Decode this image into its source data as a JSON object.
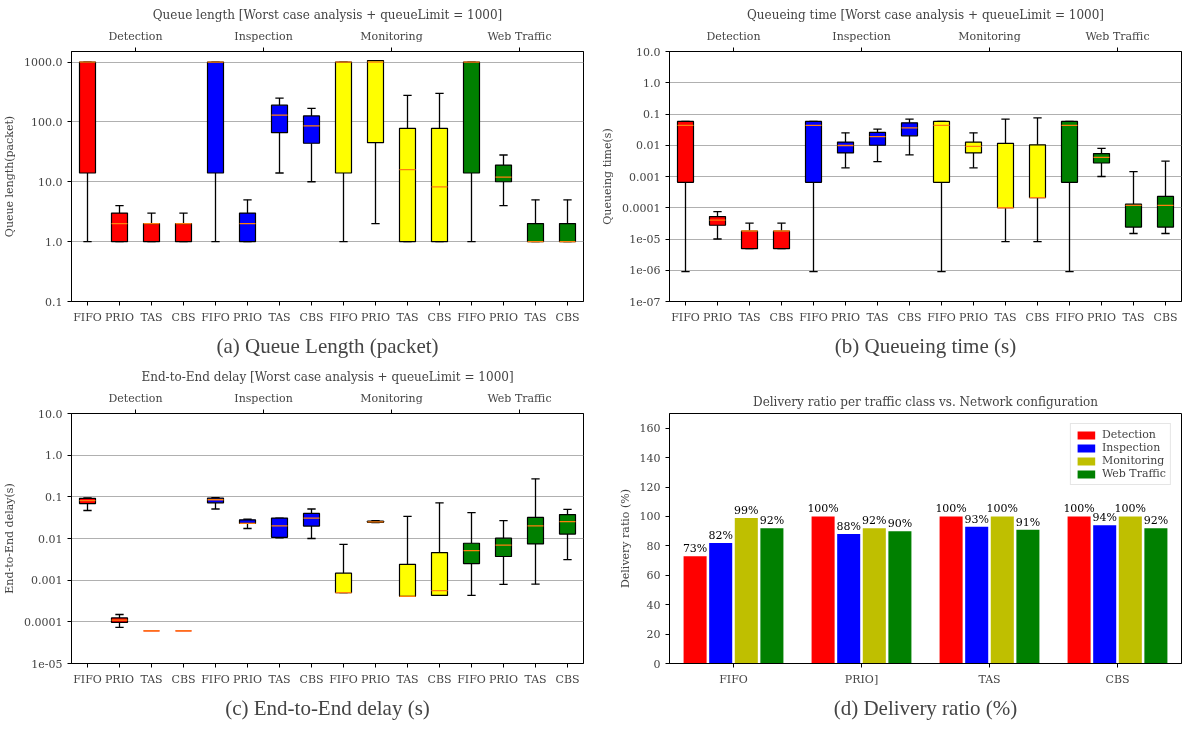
{
  "chart_data": [
    {
      "type": "box",
      "title": "Queue length [Worst case analysis + queueLimit = 1000]",
      "ylabel": "Queue length(packet)",
      "log": true,
      "grid": "y",
      "categories": [
        "FIFO",
        "PRIO",
        "TAS",
        "CBS",
        "FIFO",
        "PRIO",
        "TAS",
        "CBS",
        "FIFO",
        "PRIO",
        "TAS",
        "CBS",
        "FIFO",
        "PRIO",
        "TAS",
        "CBS"
      ],
      "ylim": [
        0.1,
        1500
      ],
      "yticks": [
        {
          "value": 0.1,
          "label": "0.1"
        },
        {
          "value": 1,
          "label": "1.0"
        },
        {
          "value": 10,
          "label": "10.0"
        },
        {
          "value": 100,
          "label": "100.0"
        },
        {
          "value": 1000,
          "label": "1000.0"
        }
      ],
      "series": [
        {
          "color": "#ff0000",
          "boxes": [
            {
              "low": 1,
              "q1": 14,
              "median": 1000,
              "q3": 1000,
              "high": 1000
            },
            {
              "low": 1,
              "q1": 1,
              "median": 2,
              "q3": 3,
              "high": 4
            },
            {
              "low": 1,
              "q1": 1,
              "median": 2,
              "q3": 2,
              "high": 3
            },
            {
              "low": 1,
              "q1": 1,
              "median": 2,
              "q3": 2,
              "high": 3
            },
            null,
            null,
            null,
            null,
            null,
            null,
            null,
            null,
            null,
            null,
            null,
            null
          ]
        },
        {
          "color": "#0000ff",
          "boxes": [
            null,
            null,
            null,
            null,
            {
              "low": 1,
              "q1": 14,
              "median": 1000,
              "q3": 1000,
              "high": 1000
            },
            {
              "low": 1,
              "q1": 1,
              "median": 2,
              "q3": 3,
              "high": 5
            },
            {
              "low": 14,
              "q1": 66,
              "median": 130,
              "q3": 190,
              "high": 250
            },
            {
              "low": 10,
              "q1": 44,
              "median": 86,
              "q3": 126,
              "high": 168
            },
            null,
            null,
            null,
            null,
            null,
            null,
            null,
            null
          ]
        },
        {
          "color": "#ffff00",
          "boxes": [
            null,
            null,
            null,
            null,
            null,
            null,
            null,
            null,
            {
              "low": 1,
              "q1": 14,
              "median": 1000,
              "q3": 1000,
              "high": 1000
            },
            {
              "low": 2,
              "q1": 45,
              "median": 1000,
              "q3": 1060,
              "high": 1060
            },
            {
              "low": 1,
              "q1": 1,
              "median": 16,
              "q3": 78,
              "high": 278
            },
            {
              "low": 1,
              "q1": 1,
              "median": 8.2,
              "q3": 78,
              "high": 300
            },
            null,
            null,
            null,
            null
          ]
        },
        {
          "color": "#008000",
          "boxes": [
            null,
            null,
            null,
            null,
            null,
            null,
            null,
            null,
            null,
            null,
            null,
            null,
            {
              "low": 1,
              "q1": 14,
              "median": 1000,
              "q3": 1000,
              "high": 1000
            },
            {
              "low": 4,
              "q1": 10,
              "median": 12,
              "q3": 19,
              "high": 28
            },
            {
              "low": 1,
              "q1": 1,
              "median": 1,
              "q3": 2,
              "high": 5
            },
            {
              "low": 1,
              "q1": 1,
              "median": 1,
              "q3": 2,
              "high": 5
            }
          ]
        }
      ],
      "annotations": [
        "Detection",
        "Inspection",
        "Monitoring",
        "Web Traffic",
        "(a) Queue Length (packet)"
      ]
    },
    {
      "type": "box",
      "title": "Queueing time [Worst case analysis + queueLimit = 1000]",
      "ylabel": "Queueing time(s)",
      "log": true,
      "grid": "y",
      "categories": [
        "FIFO",
        "PRIO",
        "TAS",
        "CBS",
        "FIFO",
        "PRIO",
        "TAS",
        "CBS",
        "FIFO",
        "PRIO",
        "TAS",
        "CBS",
        "FIFO",
        "PRIO",
        "TAS",
        "CBS"
      ],
      "ylim": [
        1e-07,
        10
      ],
      "yticks": [
        {
          "value": 1e-07,
          "label": "1e-07"
        },
        {
          "value": 1e-06,
          "label": "1e-06"
        },
        {
          "value": 1e-05,
          "label": "1e-05"
        },
        {
          "value": 0.0001,
          "label": "0.0001"
        },
        0.001,
        0.01,
        0.1,
        {
          "value": 1,
          "label": "1.0"
        },
        {
          "value": 10,
          "label": "10.0"
        }
      ],
      "series": [
        {
          "color": "#ff0000",
          "boxes": [
            {
              "low": 9e-07,
              "q1": 0.00065,
              "median": 0.043,
              "q3": 0.058,
              "high": 0.058
            },
            {
              "low": 1e-05,
              "q1": 2.75e-05,
              "median": 4e-05,
              "q3": 5.2e-05,
              "high": 7.5e-05
            },
            {
              "low": 4.9e-06,
              "q1": 4.9e-06,
              "median": 1.8e-05,
              "q3": 1.8e-05,
              "high": 3.2e-05
            },
            {
              "low": 4.9e-06,
              "q1": 4.9e-06,
              "median": 1.8e-05,
              "q3": 1.8e-05,
              "high": 3.2e-05
            },
            null,
            null,
            null,
            null,
            null,
            null,
            null,
            null,
            null,
            null,
            null,
            null
          ]
        },
        {
          "color": "#0000ff",
          "boxes": [
            null,
            null,
            null,
            null,
            {
              "low": 9e-07,
              "q1": 0.00065,
              "median": 0.043,
              "q3": 0.058,
              "high": 0.058
            },
            {
              "low": 0.0019,
              "q1": 0.0057,
              "median": 0.0098,
              "q3": 0.0126,
              "high": 0.025
            },
            {
              "low": 0.003,
              "q1": 0.01,
              "median": 0.019,
              "q3": 0.026,
              "high": 0.033
            },
            {
              "low": 0.0049,
              "q1": 0.02,
              "median": 0.036,
              "q3": 0.052,
              "high": 0.069
            },
            null,
            null,
            null,
            null,
            null,
            null,
            null,
            null
          ]
        },
        {
          "color": "#ffff00",
          "boxes": [
            null,
            null,
            null,
            null,
            null,
            null,
            null,
            null,
            {
              "low": 9e-07,
              "q1": 0.00065,
              "median": 0.043,
              "q3": 0.058,
              "high": 0.058
            },
            {
              "low": 0.0019,
              "q1": 0.0057,
              "median": 0.0092,
              "q3": 0.0126,
              "high": 0.025
            },
            {
              "low": 8.3e-06,
              "q1": 0.0001,
              "median": 0.0001,
              "q3": 0.0115,
              "high": 0.069
            },
            {
              "low": 8.3e-06,
              "q1": 0.00021,
              "median": 0.00021,
              "q3": 0.0103,
              "high": 0.075
            },
            null,
            null,
            null,
            null
          ]
        },
        {
          "color": "#008000",
          "boxes": [
            null,
            null,
            null,
            null,
            null,
            null,
            null,
            null,
            null,
            null,
            null,
            null,
            {
              "low": 9e-07,
              "q1": 0.00065,
              "median": 0.043,
              "q3": 0.058,
              "high": 0.058
            },
            {
              "low": 0.001,
              "q1": 0.0027,
              "median": 0.0041,
              "q3": 0.0054,
              "high": 0.0079
            },
            {
              "low": 1.5e-05,
              "q1": 2.4e-05,
              "median": 0.00012,
              "q3": 0.00013,
              "high": 0.00144
            },
            {
              "low": 1.5e-05,
              "q1": 2.4e-05,
              "median": 0.00012,
              "q3": 0.00023,
              "high": 0.0031
            }
          ]
        }
      ],
      "annotations": [
        "Detection",
        "Inspection",
        "Monitoring",
        "Web Traffic",
        "(b) Queueing time (s)"
      ]
    },
    {
      "type": "box",
      "title": "End-to-End delay [Worst case analysis + queueLimit = 1000]",
      "ylabel": "End-to-End delay(s)",
      "log": true,
      "grid": "y",
      "categories": [
        "FIFO",
        "PRIO",
        "TAS",
        "CBS",
        "FIFO",
        "PRIO",
        "TAS",
        "CBS",
        "FIFO",
        "PRIO",
        "TAS",
        "CBS",
        "FIFO",
        "PRIO",
        "TAS",
        "CBS"
      ],
      "ylim": [
        1e-05,
        10
      ],
      "yticks": [
        {
          "value": 1e-05,
          "label": "1e-05"
        },
        {
          "value": 0.0001,
          "label": "0.0001"
        },
        0.001,
        0.01,
        0.1,
        {
          "value": 1,
          "label": "1.0"
        },
        {
          "value": 10,
          "label": "10.0"
        }
      ],
      "series": [
        {
          "color": "#ff0000",
          "boxes": [
            {
              "low": 0.047,
              "q1": 0.069,
              "median": 0.081,
              "q3": 0.092,
              "high": 0.094
            },
            {
              "low": 7.4e-05,
              "q1": 9.7e-05,
              "median": 0.00011,
              "q3": 0.000124,
              "high": 0.00015
            },
            {
              "low": 6.1e-05,
              "q1": 6.1e-05,
              "median": 6.1e-05,
              "q3": 6.1e-05,
              "high": 6.1e-05
            },
            {
              "low": 6.1e-05,
              "q1": 6.1e-05,
              "median": 6.1e-05,
              "q3": 6.1e-05,
              "high": 6.1e-05
            },
            null,
            null,
            null,
            null,
            null,
            null,
            null,
            null,
            null,
            null,
            null,
            null
          ]
        },
        {
          "color": "#0000ff",
          "boxes": [
            null,
            null,
            null,
            null,
            {
              "low": 0.051,
              "q1": 0.072,
              "median": 0.085,
              "q3": 0.093,
              "high": 0.096
            },
            {
              "low": 0.0174,
              "q1": 0.023,
              "median": 0.023,
              "q3": 0.028,
              "high": 0.029
            },
            {
              "low": 0.0103,
              "q1": 0.0107,
              "median": 0.02,
              "q3": 0.031,
              "high": 0.031
            },
            {
              "low": 0.01,
              "q1": 0.0199,
              "median": 0.031,
              "q3": 0.04,
              "high": 0.051
            },
            null,
            null,
            null,
            null,
            null,
            null,
            null,
            null
          ]
        },
        {
          "color": "#ffff00",
          "boxes": [
            null,
            null,
            null,
            null,
            null,
            null,
            null,
            null,
            {
              "low": 0.0005,
              "q1": 0.0005,
              "median": 0.0005,
              "q3": 0.00147,
              "high": 0.0072
            },
            {
              "low": 0.024,
              "q1": 0.0245,
              "median": 0.025,
              "q3": 0.026,
              "high": 0.027
            },
            {
              "low": 0.00041,
              "q1": 0.00041,
              "median": 0.00041,
              "q3": 0.0024,
              "high": 0.034
            },
            {
              "low": 0.00043,
              "q1": 0.00043,
              "median": 0.00056,
              "q3": 0.0046,
              "high": 0.072
            },
            null,
            null,
            null,
            null
          ]
        },
        {
          "color": "#008000",
          "boxes": [
            null,
            null,
            null,
            null,
            null,
            null,
            null,
            null,
            null,
            null,
            null,
            null,
            {
              "low": 0.00043,
              "q1": 0.0025,
              "median": 0.0051,
              "q3": 0.0077,
              "high": 0.042
            },
            {
              "low": 0.00079,
              "q1": 0.0037,
              "median": 0.0069,
              "q3": 0.0102,
              "high": 0.027
            },
            {
              "low": 0.0008,
              "q1": 0.0074,
              "median": 0.02,
              "q3": 0.032,
              "high": 0.27
            },
            {
              "low": 0.0031,
              "q1": 0.0128,
              "median": 0.0253,
              "q3": 0.0375,
              "high": 0.05
            }
          ]
        }
      ],
      "annotations": [
        "Detection",
        "Inspection",
        "Monitoring",
        "Web Traffic",
        "(c) End-to-End delay (s)"
      ]
    },
    {
      "type": "bar",
      "title": "Delivery ratio per traffic class vs. Network configuration",
      "ylabel": "Delivery ratio (%)",
      "legend": "top right",
      "categories": [
        "FIFO",
        "PRIO]",
        "TAS",
        "CBS"
      ],
      "ylim": [
        0,
        170
      ],
      "yticks": [
        0,
        20,
        40,
        60,
        80,
        100,
        120,
        140,
        160
      ],
      "series": [
        {
          "name": "Detection",
          "color": "#ff0000",
          "values": [
            73,
            100,
            100,
            100
          ],
          "value_labels": [
            "73%",
            "100%",
            "100%",
            "100%"
          ]
        },
        {
          "name": "Inspection",
          "color": "#0000ff",
          "values": [
            82,
            88,
            93,
            94
          ],
          "value_labels": [
            "82%",
            "88%",
            "93%",
            "94%"
          ]
        },
        {
          "name": "Monitoring",
          "color": "#bfbf00",
          "values": [
            99,
            92,
            100,
            100
          ],
          "value_labels": [
            "99%",
            "92%",
            "100%",
            "100%"
          ]
        },
        {
          "name": "Web Traffic",
          "color": "#008000",
          "values": [
            92,
            90,
            91,
            92
          ],
          "value_labels": [
            "92%",
            "90%",
            "91%",
            "92%"
          ]
        }
      ],
      "annotations": [
        "(d) Delivery ratio (%)"
      ]
    }
  ]
}
